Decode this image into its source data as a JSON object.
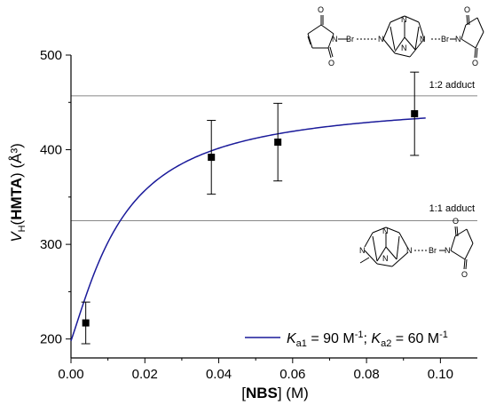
{
  "chart_data": {
    "type": "scatter",
    "xlabel": {
      "bracket_open": "[",
      "bold": "NBS",
      "bracket_close": "]",
      "unit": " (M)"
    },
    "ylabel": {
      "prefix": "V",
      "sub": "H",
      "paren_open": "(",
      "bold": "HMTA",
      "paren_close": ")",
      "unit": " (Å³)"
    },
    "xlim": [
      0.0,
      0.11
    ],
    "ylim": [
      180,
      500
    ],
    "x_ticks": [
      "0.00",
      "0.02",
      "0.04",
      "0.06",
      "0.08",
      "0.10"
    ],
    "x_tick_values": [
      0.0,
      0.02,
      0.04,
      0.06,
      0.08,
      0.1
    ],
    "y_ticks": [
      "200",
      "300",
      "400",
      "500"
    ],
    "y_tick_values": [
      200,
      300,
      400,
      500
    ],
    "grid": false,
    "series": [
      {
        "kind": "points",
        "x": [
          0.004,
          0.038,
          0.056,
          0.093
        ],
        "y": [
          217,
          392,
          408,
          438
        ],
        "err": [
          22,
          39,
          41,
          44
        ],
        "color": "#000000"
      },
      {
        "name": "K_a1 = 90 M-1; K_a2 = 60 M-1",
        "kind": "line",
        "model": {
          "Ka1": 90,
          "Ka2": 60,
          "V0": 198,
          "V1": 325,
          "V2": 457
        },
        "x_range": [
          0.0,
          0.096
        ],
        "color": "#1a1a9a"
      }
    ],
    "reference_lines": [
      {
        "y": 457,
        "label": "1:2 adduct",
        "color": "#888888"
      },
      {
        "y": 325,
        "label": "1:1 adduct",
        "color": "#888888"
      }
    ],
    "legend": {
      "placement": "bottom-right",
      "parts": [
        {
          "t": "K",
          "style": "italic"
        },
        {
          "t": "a1",
          "style": "sub"
        },
        {
          "t": " = 90 M",
          "style": "normal"
        },
        {
          "t": "-1",
          "style": "sup"
        },
        {
          "t": "; ",
          "style": "normal"
        },
        {
          "t": "K",
          "style": "italic"
        },
        {
          "t": "a2",
          "style": "sub"
        },
        {
          "t": " = 60 M",
          "style": "normal"
        },
        {
          "t": "-1",
          "style": "sup"
        }
      ]
    }
  },
  "structures": {
    "top": {
      "atom_labels": [
        "O",
        "N",
        "Br",
        "N",
        "N",
        "N",
        "N",
        "Br",
        "N",
        "O",
        "O",
        "O"
      ]
    },
    "bottom": {
      "atom_labels": [
        "N",
        "N",
        "N",
        "N",
        "Br",
        "N",
        "O",
        "O"
      ]
    }
  }
}
